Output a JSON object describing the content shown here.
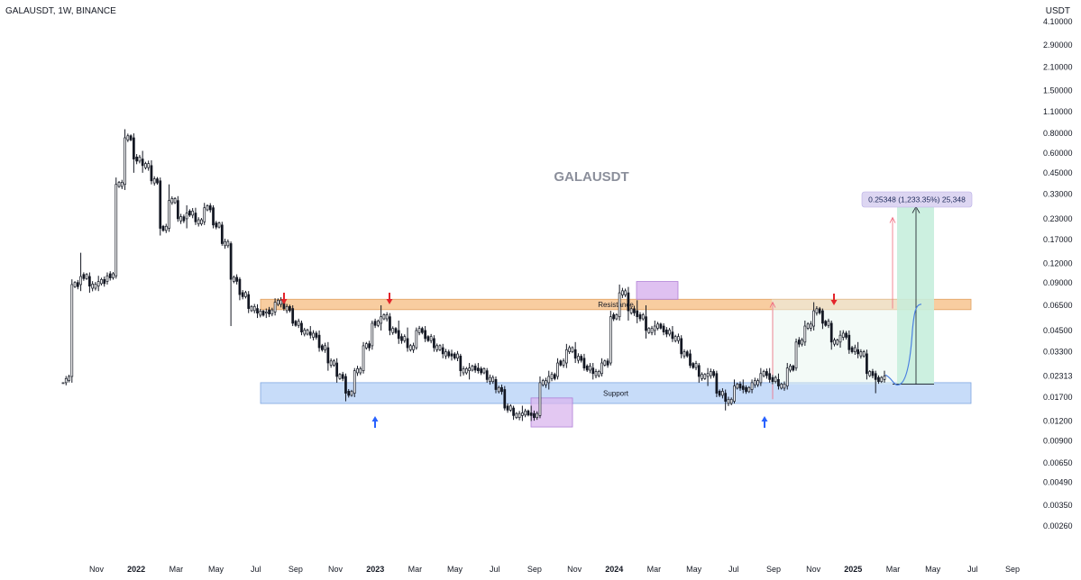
{
  "header": {
    "title": "GALAUSDT, 1W, BINANCE",
    "currency": "USDT"
  },
  "colors": {
    "candle_up": "#ffffff",
    "candle_down": "#131722",
    "candle_border": "#131722",
    "resistance_fill": "#f7c48f",
    "support_fill": "#b9d3f7",
    "highlight_fill": "#d9b6ee",
    "down_arrow": "#e3242b",
    "up_arrow": "#2962ff",
    "measure_fill": "#c7eedd",
    "measure_line": "#f06a7d",
    "projection": "#4a7fe0",
    "label_fill": "#ddd6f2"
  },
  "chart_data": {
    "type": "candlestick",
    "watermark": "GALAUSDT",
    "y_scale": "log",
    "ylim": [
      0.0021,
      4.2
    ],
    "y_ticks": [
      "4.10000",
      "2.90000",
      "2.10000",
      "1.50000",
      "1.10000",
      "0.80000",
      "0.60000",
      "0.45000",
      "0.33000",
      "0.23000",
      "0.17000",
      "0.12000",
      "0.09000",
      "0.06500",
      "0.04500",
      "0.03300",
      "0.02313",
      "0.01700",
      "0.01200",
      "0.00900",
      "0.00650",
      "0.00490",
      "0.00350",
      "0.00260"
    ],
    "x_ticks": [
      "Nov",
      "2022",
      "Mar",
      "May",
      "Jul",
      "Sep",
      "Nov",
      "2023",
      "Mar",
      "May",
      "Jul",
      "Sep",
      "Nov",
      "2024",
      "Mar",
      "May",
      "Jul",
      "Sep",
      "Nov",
      "2025",
      "Mar",
      "May",
      "Jul",
      "Sep"
    ],
    "bold_x_ticks": [
      "2022",
      "2023",
      "2024",
      "2025"
    ],
    "current_price": 0.02313,
    "zones": [
      {
        "label": "Resistance",
        "low": 0.061,
        "high": 0.071
      },
      {
        "label": "Support",
        "low": 0.0155,
        "high": 0.021
      }
    ],
    "measure_label": "0.25348 (1,233.35%) 25,348",
    "measure_from": 0.02055,
    "measure_to": 0.274,
    "anchors": [
      {
        "o": 0.021,
        "h": 0.021,
        "l": 0.021,
        "c": 0.021
      },
      {
        "o": 0.023,
        "h": 0.095,
        "l": 0.021,
        "c": 0.088
      },
      {
        "o": 0.088,
        "h": 0.14,
        "l": 0.08,
        "c": 0.099
      },
      {
        "o": 0.099,
        "h": 0.105,
        "l": 0.078,
        "c": 0.086
      },
      {
        "o": 0.086,
        "h": 0.1,
        "l": 0.08,
        "c": 0.092
      },
      {
        "o": 0.092,
        "h": 0.105,
        "l": 0.088,
        "c": 0.1
      },
      {
        "o": 0.1,
        "h": 0.42,
        "l": 0.096,
        "c": 0.38
      },
      {
        "o": 0.38,
        "h": 0.85,
        "l": 0.35,
        "c": 0.75
      },
      {
        "o": 0.75,
        "h": 0.8,
        "l": 0.45,
        "c": 0.55
      },
      {
        "o": 0.55,
        "h": 0.62,
        "l": 0.45,
        "c": 0.5
      },
      {
        "o": 0.5,
        "h": 0.54,
        "l": 0.38,
        "c": 0.4
      },
      {
        "o": 0.4,
        "h": 0.42,
        "l": 0.18,
        "c": 0.2
      },
      {
        "o": 0.2,
        "h": 0.38,
        "l": 0.19,
        "c": 0.3
      },
      {
        "o": 0.3,
        "h": 0.32,
        "l": 0.22,
        "c": 0.23
      },
      {
        "o": 0.23,
        "h": 0.28,
        "l": 0.2,
        "c": 0.25
      },
      {
        "o": 0.25,
        "h": 0.27,
        "l": 0.21,
        "c": 0.22
      },
      {
        "o": 0.22,
        "h": 0.29,
        "l": 0.21,
        "c": 0.27
      },
      {
        "o": 0.27,
        "h": 0.28,
        "l": 0.2,
        "c": 0.21
      },
      {
        "o": 0.21,
        "h": 0.22,
        "l": 0.155,
        "c": 0.16
      },
      {
        "o": 0.16,
        "h": 0.165,
        "l": 0.048,
        "c": 0.095
      },
      {
        "o": 0.095,
        "h": 0.098,
        "l": 0.07,
        "c": 0.076
      },
      {
        "o": 0.076,
        "h": 0.08,
        "l": 0.058,
        "c": 0.062
      },
      {
        "o": 0.062,
        "h": 0.066,
        "l": 0.054,
        "c": 0.058
      },
      {
        "o": 0.058,
        "h": 0.062,
        "l": 0.054,
        "c": 0.059
      },
      {
        "o": 0.059,
        "h": 0.072,
        "l": 0.056,
        "c": 0.068
      },
      {
        "o": 0.068,
        "h": 0.076,
        "l": 0.06,
        "c": 0.062
      },
      {
        "o": 0.062,
        "h": 0.065,
        "l": 0.048,
        "c": 0.05
      },
      {
        "o": 0.05,
        "h": 0.052,
        "l": 0.042,
        "c": 0.044
      },
      {
        "o": 0.044,
        "h": 0.048,
        "l": 0.04,
        "c": 0.042
      },
      {
        "o": 0.042,
        "h": 0.045,
        "l": 0.033,
        "c": 0.035
      },
      {
        "o": 0.035,
        "h": 0.038,
        "l": 0.025,
        "c": 0.028
      },
      {
        "o": 0.028,
        "h": 0.03,
        "l": 0.021,
        "c": 0.023
      },
      {
        "o": 0.023,
        "h": 0.024,
        "l": 0.016,
        "c": 0.018
      },
      {
        "o": 0.018,
        "h": 0.026,
        "l": 0.017,
        "c": 0.025
      },
      {
        "o": 0.025,
        "h": 0.038,
        "l": 0.024,
        "c": 0.036
      },
      {
        "o": 0.036,
        "h": 0.052,
        "l": 0.034,
        "c": 0.05
      },
      {
        "o": 0.05,
        "h": 0.065,
        "l": 0.045,
        "c": 0.055
      },
      {
        "o": 0.055,
        "h": 0.058,
        "l": 0.042,
        "c": 0.045
      },
      {
        "o": 0.045,
        "h": 0.052,
        "l": 0.037,
        "c": 0.04
      },
      {
        "o": 0.04,
        "h": 0.047,
        "l": 0.033,
        "c": 0.035
      },
      {
        "o": 0.035,
        "h": 0.047,
        "l": 0.034,
        "c": 0.045
      },
      {
        "o": 0.045,
        "h": 0.048,
        "l": 0.038,
        "c": 0.04
      },
      {
        "o": 0.04,
        "h": 0.042,
        "l": 0.033,
        "c": 0.035
      },
      {
        "o": 0.035,
        "h": 0.037,
        "l": 0.03,
        "c": 0.032
      },
      {
        "o": 0.032,
        "h": 0.034,
        "l": 0.029,
        "c": 0.031
      },
      {
        "o": 0.031,
        "h": 0.032,
        "l": 0.023,
        "c": 0.025
      },
      {
        "o": 0.025,
        "h": 0.028,
        "l": 0.022,
        "c": 0.026
      },
      {
        "o": 0.026,
        "h": 0.028,
        "l": 0.024,
        "c": 0.025
      },
      {
        "o": 0.025,
        "h": 0.026,
        "l": 0.021,
        "c": 0.022
      },
      {
        "o": 0.022,
        "h": 0.023,
        "l": 0.018,
        "c": 0.019
      },
      {
        "o": 0.019,
        "h": 0.02,
        "l": 0.014,
        "c": 0.0145
      },
      {
        "o": 0.0145,
        "h": 0.015,
        "l": 0.0122,
        "c": 0.013
      },
      {
        "o": 0.013,
        "h": 0.015,
        "l": 0.012,
        "c": 0.0135
      },
      {
        "o": 0.0135,
        "h": 0.015,
        "l": 0.012,
        "c": 0.013
      },
      {
        "o": 0.013,
        "h": 0.023,
        "l": 0.0125,
        "c": 0.021
      },
      {
        "o": 0.021,
        "h": 0.025,
        "l": 0.019,
        "c": 0.023
      },
      {
        "o": 0.023,
        "h": 0.03,
        "l": 0.022,
        "c": 0.028
      },
      {
        "o": 0.028,
        "h": 0.037,
        "l": 0.026,
        "c": 0.034
      },
      {
        "o": 0.034,
        "h": 0.038,
        "l": 0.028,
        "c": 0.03
      },
      {
        "o": 0.03,
        "h": 0.032,
        "l": 0.025,
        "c": 0.026
      },
      {
        "o": 0.026,
        "h": 0.028,
        "l": 0.022,
        "c": 0.024
      },
      {
        "o": 0.024,
        "h": 0.03,
        "l": 0.023,
        "c": 0.028
      },
      {
        "o": 0.028,
        "h": 0.06,
        "l": 0.027,
        "c": 0.055
      },
      {
        "o": 0.055,
        "h": 0.088,
        "l": 0.052,
        "c": 0.078
      },
      {
        "o": 0.078,
        "h": 0.085,
        "l": 0.052,
        "c": 0.06
      },
      {
        "o": 0.06,
        "h": 0.07,
        "l": 0.05,
        "c": 0.055
      },
      {
        "o": 0.055,
        "h": 0.065,
        "l": 0.04,
        "c": 0.045
      },
      {
        "o": 0.045,
        "h": 0.052,
        "l": 0.042,
        "c": 0.048
      },
      {
        "o": 0.048,
        "h": 0.05,
        "l": 0.042,
        "c": 0.044
      },
      {
        "o": 0.044,
        "h": 0.048,
        "l": 0.038,
        "c": 0.04
      },
      {
        "o": 0.04,
        "h": 0.042,
        "l": 0.03,
        "c": 0.032
      },
      {
        "o": 0.032,
        "h": 0.034,
        "l": 0.026,
        "c": 0.027
      },
      {
        "o": 0.027,
        "h": 0.028,
        "l": 0.021,
        "c": 0.023
      },
      {
        "o": 0.023,
        "h": 0.026,
        "l": 0.02,
        "c": 0.024
      },
      {
        "o": 0.024,
        "h": 0.025,
        "l": 0.017,
        "c": 0.018
      },
      {
        "o": 0.018,
        "h": 0.019,
        "l": 0.014,
        "c": 0.016
      },
      {
        "o": 0.016,
        "h": 0.022,
        "l": 0.0155,
        "c": 0.02
      },
      {
        "o": 0.02,
        "h": 0.022,
        "l": 0.018,
        "c": 0.019
      },
      {
        "o": 0.019,
        "h": 0.022,
        "l": 0.018,
        "c": 0.021
      },
      {
        "o": 0.021,
        "h": 0.026,
        "l": 0.02,
        "c": 0.024
      },
      {
        "o": 0.024,
        "h": 0.026,
        "l": 0.021,
        "c": 0.022
      },
      {
        "o": 0.022,
        "h": 0.024,
        "l": 0.019,
        "c": 0.02
      },
      {
        "o": 0.02,
        "h": 0.028,
        "l": 0.019,
        "c": 0.026
      },
      {
        "o": 0.026,
        "h": 0.04,
        "l": 0.025,
        "c": 0.038
      },
      {
        "o": 0.038,
        "h": 0.052,
        "l": 0.036,
        "c": 0.048
      },
      {
        "o": 0.048,
        "h": 0.068,
        "l": 0.045,
        "c": 0.06
      },
      {
        "o": 0.06,
        "h": 0.062,
        "l": 0.046,
        "c": 0.05
      },
      {
        "o": 0.05,
        "h": 0.052,
        "l": 0.034,
        "c": 0.038
      },
      {
        "o": 0.038,
        "h": 0.045,
        "l": 0.035,
        "c": 0.042
      },
      {
        "o": 0.042,
        "h": 0.045,
        "l": 0.032,
        "c": 0.034
      },
      {
        "o": 0.034,
        "h": 0.038,
        "l": 0.03,
        "c": 0.032
      },
      {
        "o": 0.032,
        "h": 0.034,
        "l": 0.022,
        "c": 0.024
      },
      {
        "o": 0.024,
        "h": 0.025,
        "l": 0.018,
        "c": 0.022
      },
      {
        "o": 0.022,
        "h": 0.025,
        "l": 0.021,
        "c": 0.02313
      }
    ]
  }
}
